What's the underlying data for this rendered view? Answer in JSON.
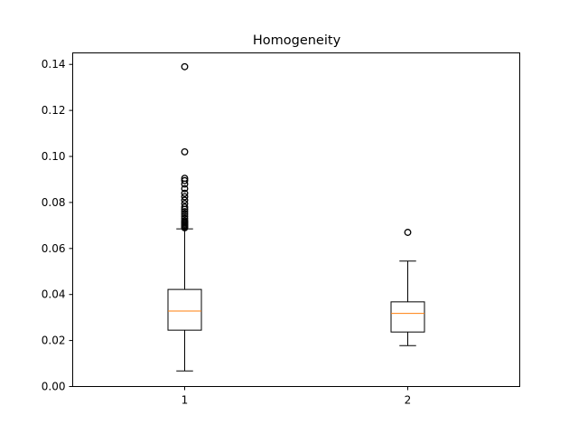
{
  "chart_data": {
    "type": "boxplot",
    "title": "Homogeneity",
    "xlabel": "",
    "ylabel": "",
    "ylim": [
      0.0,
      0.145
    ],
    "yticks": [
      0.0,
      0.02,
      0.04,
      0.06,
      0.08,
      0.1,
      0.12,
      0.14
    ],
    "ytick_labels": [
      "0.00",
      "0.02",
      "0.04",
      "0.06",
      "0.08",
      "0.10",
      "0.12",
      "0.14"
    ],
    "categories": [
      "1",
      "2"
    ],
    "grid": false,
    "boxes": [
      {
        "category": "1",
        "whisker_low": 0.0068,
        "q1": 0.0245,
        "median": 0.0328,
        "q3": 0.0422,
        "whisker_high": 0.0685,
        "outliers": [
          0.069,
          0.0695,
          0.07,
          0.0705,
          0.071,
          0.0715,
          0.072,
          0.073,
          0.074,
          0.075,
          0.076,
          0.077,
          0.078,
          0.0795,
          0.081,
          0.0825,
          0.084,
          0.086,
          0.088,
          0.0895,
          0.0905,
          0.102,
          0.139
        ]
      },
      {
        "category": "2",
        "whisker_low": 0.0178,
        "q1": 0.0237,
        "median": 0.0318,
        "q3": 0.0368,
        "whisker_high": 0.0545,
        "outliers": [
          0.067
        ]
      }
    ],
    "colors": {
      "box": "#000000",
      "median": "#ff7f0e",
      "outlier": "#000000"
    }
  }
}
